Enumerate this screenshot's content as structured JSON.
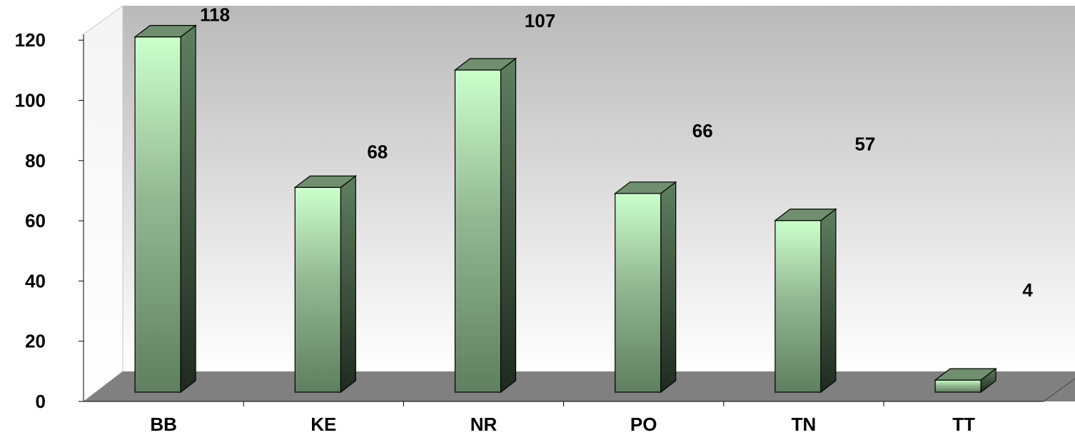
{
  "chart_data": {
    "type": "bar",
    "categories": [
      "BB",
      "KE",
      "NR",
      "PO",
      "TN",
      "TT"
    ],
    "values": [
      118,
      68,
      107,
      66,
      57,
      4
    ],
    "data_labels": [
      "118",
      "68",
      "107",
      "66",
      "57",
      "4"
    ],
    "y_ticks": [
      "0",
      "20",
      "40",
      "60",
      "80",
      "100",
      "120"
    ],
    "ylim": [
      0,
      120
    ],
    "title": "",
    "xlabel": "",
    "ylabel": "",
    "grid": false,
    "legend": false,
    "style": "3d-column",
    "colors": {
      "bar_light": "#ccffcc",
      "bar_dark": "#5f7f5f",
      "bar_side": "#2e3e2e",
      "wall_top": "#bdbdbd",
      "wall_bottom": "#ffffff",
      "floor": "#808080"
    }
  }
}
